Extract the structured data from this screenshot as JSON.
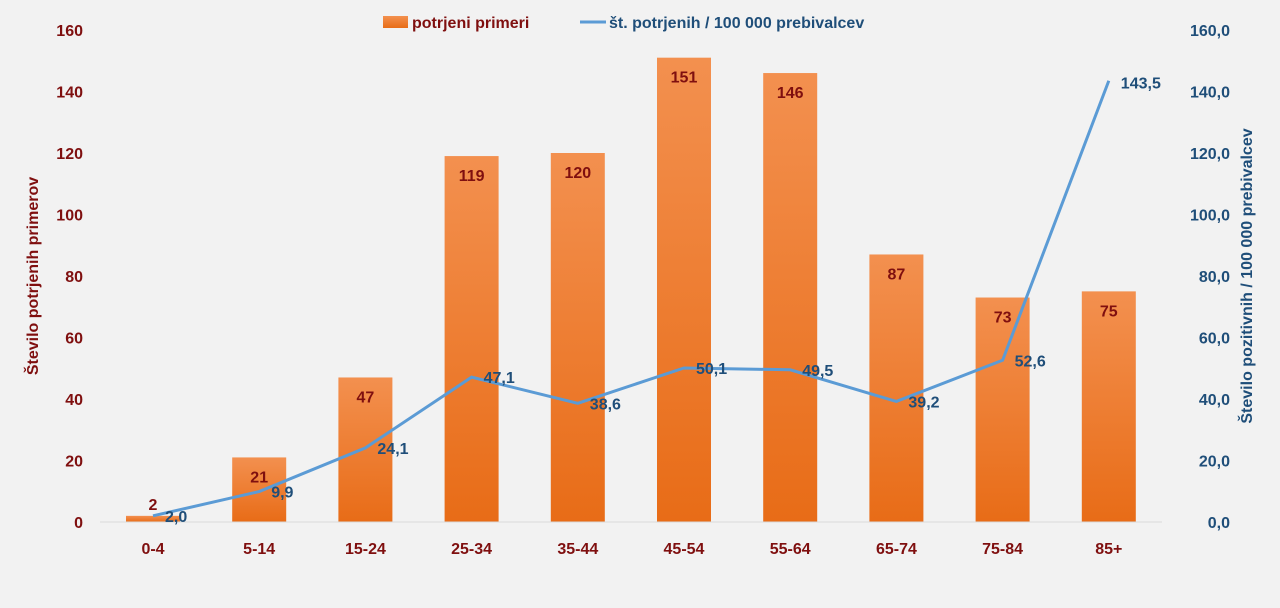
{
  "chart_data": {
    "type": "bar+line",
    "categories": [
      "0-4",
      "5-14",
      "15-24",
      "25-34",
      "35-44",
      "45-54",
      "55-64",
      "65-74",
      "75-84",
      "85+"
    ],
    "series": [
      {
        "name": "potrjeni primeri",
        "type": "bar",
        "axis": "left",
        "values": [
          2,
          21,
          47,
          119,
          120,
          151,
          146,
          87,
          73,
          75
        ],
        "labels": [
          "2",
          "21",
          "47",
          "119",
          "120",
          "151",
          "146",
          "87",
          "73",
          "75"
        ],
        "color": "#f07f2c"
      },
      {
        "name": "št. potrjenih / 100 000 prebivalcev",
        "type": "line",
        "axis": "right",
        "values": [
          2.0,
          9.9,
          24.1,
          47.1,
          38.6,
          50.1,
          49.5,
          39.2,
          52.6,
          143.5
        ],
        "labels": [
          "2,0",
          "9,9",
          "24,1",
          "47,1",
          "38,6",
          "50,1",
          "49,5",
          "39,2",
          "52,6",
          "143,5"
        ],
        "color": "#5b9bd5"
      }
    ],
    "ylabel": "Število potrjenih  primerov",
    "y2label": "Število pozitivnih  / 100 000 prebivalcev",
    "ylim": [
      0,
      160
    ],
    "y2lim": [
      0,
      160
    ],
    "yticks": [
      "0",
      "20",
      "40",
      "60",
      "80",
      "100",
      "120",
      "140",
      "160"
    ],
    "y2ticks": [
      "0,0",
      "20,0",
      "40,0",
      "60,0",
      "80,0",
      "100,0",
      "120,0",
      "140,0",
      "160,0"
    ],
    "legend": "top-center",
    "grid": false
  }
}
